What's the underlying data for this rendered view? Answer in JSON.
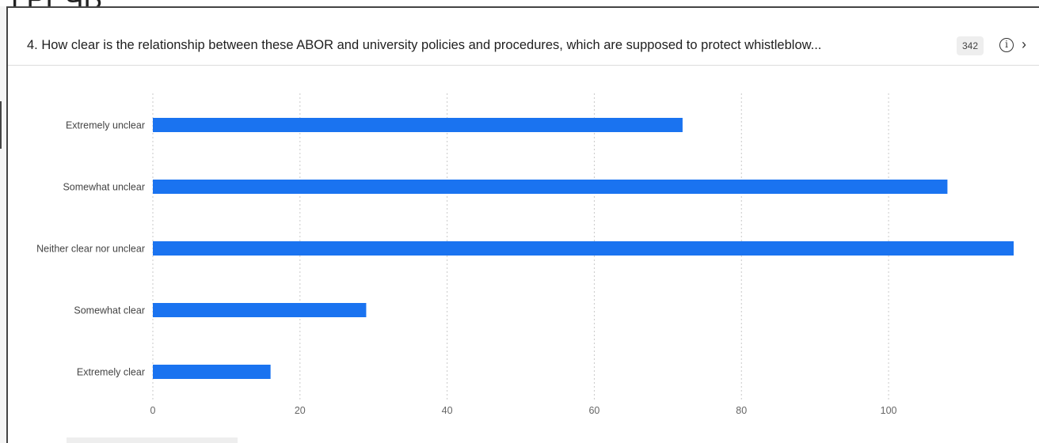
{
  "header": {
    "question": "4. How clear is the relationship between these ABOR and university policies and procedures, which are supposed to protect whistleblow...",
    "response_count": "342",
    "info_icon": "info-icon",
    "next_icon": "chevron-right-icon"
  },
  "page_top_text": "ГРЕЧЬ",
  "colors": {
    "bar": "#1a73f0",
    "grid": "#c9c9c9",
    "label": "#444444"
  },
  "chart_data": {
    "type": "bar",
    "orientation": "horizontal",
    "categories": [
      "Extremely unclear",
      "Somewhat unclear",
      "Neither clear nor unclear",
      "Somewhat clear",
      "Extremely clear"
    ],
    "values": [
      72,
      108,
      117,
      29,
      16
    ],
    "xlim": [
      0,
      117
    ],
    "xticks": [
      0,
      20,
      40,
      60,
      80,
      100
    ],
    "grid": true,
    "title": "",
    "xlabel": "",
    "ylabel": ""
  }
}
